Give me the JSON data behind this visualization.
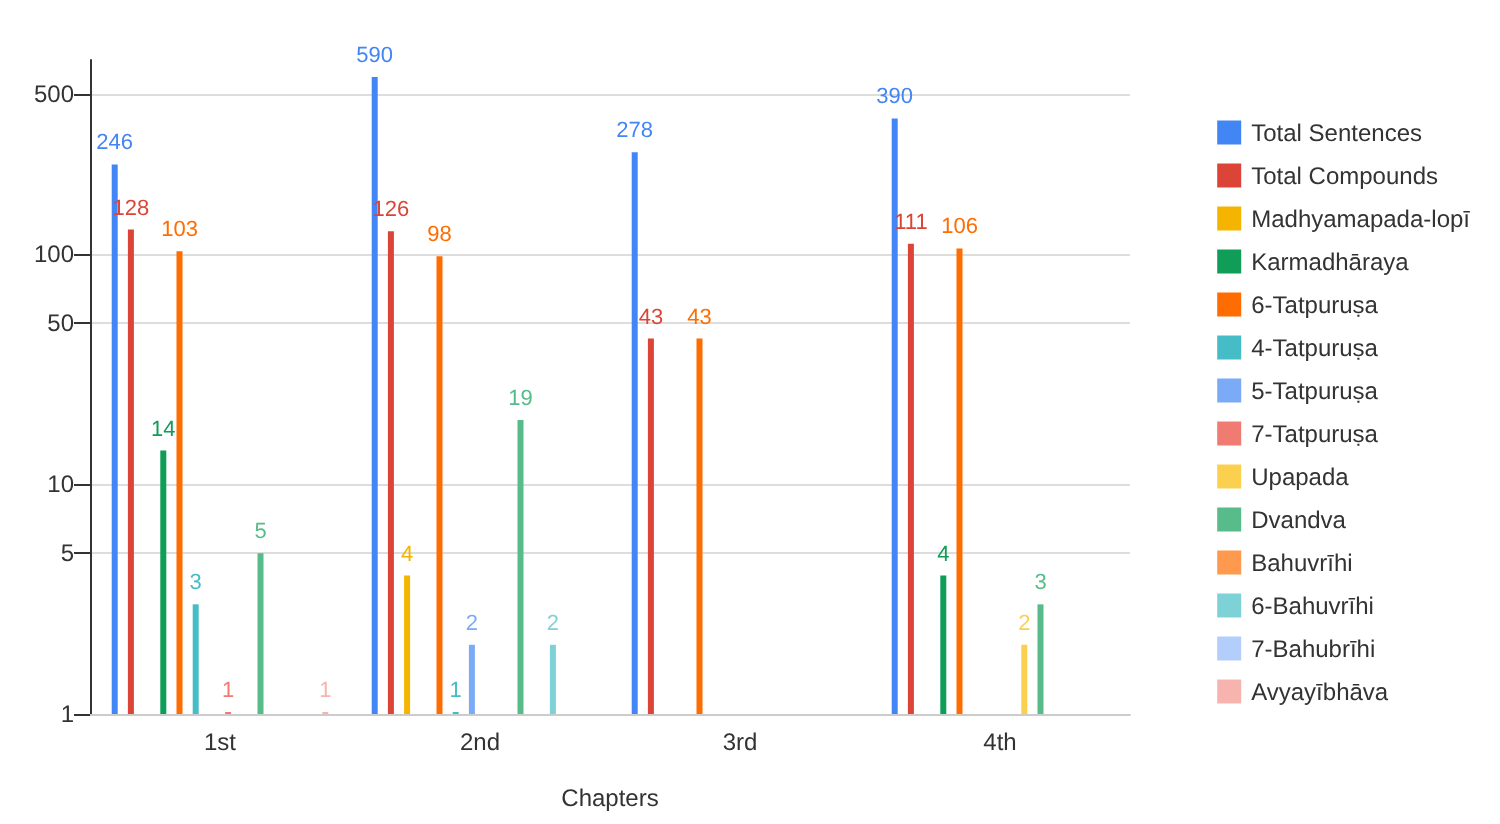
{
  "chart_data": {
    "type": "bar",
    "xlabel": "Chapters",
    "categories": [
      "1st",
      "2nd",
      "3rd",
      "4th"
    ],
    "log": "y",
    "ylim": [
      1,
      700
    ],
    "yticks": [
      1,
      5,
      10,
      50,
      100,
      500
    ],
    "grid": "y",
    "legend": "right",
    "data_labels": true,
    "series": [
      {
        "name": "Total Sentences",
        "color": "#4285f4",
        "values": [
          246,
          590,
          278,
          390
        ]
      },
      {
        "name": "Total Compounds",
        "color": "#db4437",
        "values": [
          128,
          126,
          43,
          111
        ]
      },
      {
        "name": "Madhyamapada-lopī",
        "color": "#f4b400",
        "values": [
          null,
          4,
          null,
          null
        ]
      },
      {
        "name": "Karmadhāraya",
        "color": "#0f9d58",
        "values": [
          14,
          null,
          null,
          4
        ]
      },
      {
        "name": "6-Tatpuruṣa",
        "color": "#ff6d01",
        "values": [
          103,
          98,
          43,
          106
        ]
      },
      {
        "name": "4-Tatpuruṣa",
        "color": "#46bdc6",
        "values": [
          3,
          1,
          null,
          null
        ]
      },
      {
        "name": "5-Tatpuruṣa",
        "color": "#7baaf7",
        "values": [
          null,
          2,
          null,
          null
        ]
      },
      {
        "name": "7-Tatpuruṣa",
        "color": "#f07b72",
        "values": [
          1,
          null,
          null,
          null
        ]
      },
      {
        "name": "Upapada",
        "color": "#fcd04f",
        "values": [
          null,
          null,
          null,
          2
        ]
      },
      {
        "name": "Dvandva",
        "color": "#57bb8a",
        "values": [
          5,
          19,
          null,
          3
        ]
      },
      {
        "name": "Bahuvrīhi",
        "color": "#ff994d",
        "values": [
          null,
          null,
          null,
          null
        ]
      },
      {
        "name": "6-Bahuvrīhi",
        "color": "#7ed1d7",
        "values": [
          null,
          2,
          null,
          null
        ]
      },
      {
        "name": "7-Bahubrīhi",
        "color": "#b3cefb",
        "values": [
          null,
          null,
          null,
          null
        ]
      },
      {
        "name": "Avyayībhāva",
        "color": "#f7b4ae",
        "values": [
          1,
          null,
          null,
          null
        ]
      }
    ]
  }
}
